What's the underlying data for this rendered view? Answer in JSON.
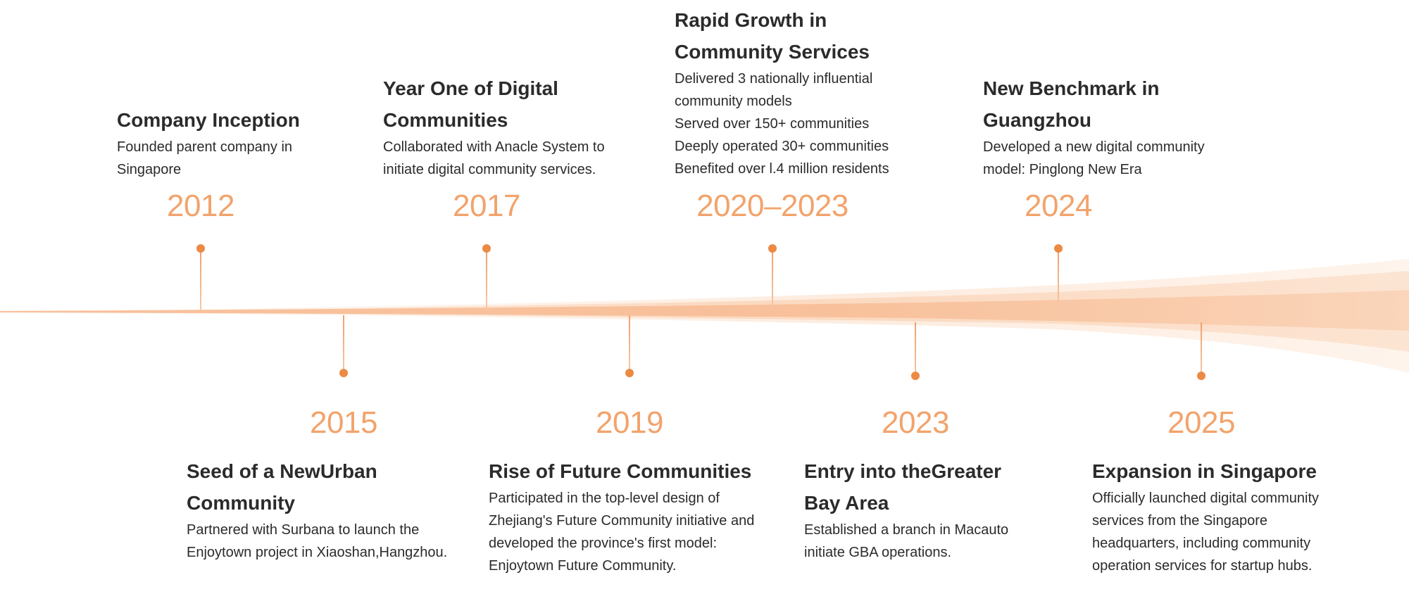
{
  "colors": {
    "accent": "#ec8a44",
    "year": "#f2a36b",
    "band": "#f7b98f",
    "text": "#2b2b2b"
  },
  "timeline": {
    "top": [
      {
        "year": "2012",
        "title": "Company Inception",
        "desc": [
          "Founded parent company in",
          "Singapore"
        ]
      },
      {
        "year": "2017",
        "title": [
          "Year One of Digital",
          "Communities"
        ],
        "desc": [
          "Collaborated with Anacle System to",
          "initiate digital community services."
        ]
      },
      {
        "year": "2020–2023",
        "title": [
          "Rapid Growth in",
          "Community Services"
        ],
        "desc": [
          "Delivered 3 nationally influential",
          "community models",
          "Served over 150+ communities",
          "Deeply operated 30+ communities",
          "Benefited over l.4 million residents"
        ]
      },
      {
        "year": "2024",
        "title": [
          "New Benchmark in",
          "Guangzhou"
        ],
        "desc": [
          "Developed a new digital community",
          "model: Pinglong New Era"
        ]
      }
    ],
    "bottom": [
      {
        "year": "2015",
        "title": [
          "Seed of a NewUrban",
          "Community"
        ],
        "desc": [
          "Partnered with Surbana to launch the",
          "Enjoytown project in Xiaoshan,Hangzhou."
        ]
      },
      {
        "year": "2019",
        "title": "Rise of Future Communities",
        "desc": [
          "Participated in the top-level design of",
          "Zhejiang's Future Community initiative and",
          "developed the province's first model:",
          "Enjoytown Future Community."
        ]
      },
      {
        "year": "2023",
        "title": [
          "Entry into theGreater",
          "Bay Area"
        ],
        "desc": [
          "Established a branch in Macauto",
          "initiate GBA operations."
        ]
      },
      {
        "year": "2025",
        "title": "Expansion in Singapore",
        "desc": [
          "Officially launched digital community",
          "services from the Singapore",
          "headquarters, including community",
          "operation services for startup hubs."
        ]
      }
    ]
  }
}
